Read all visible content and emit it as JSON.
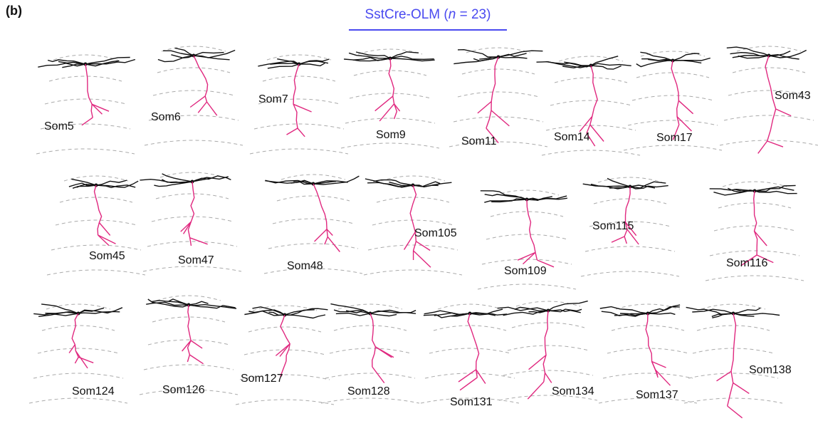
{
  "panel_label": "(b)",
  "title_parts": [
    "SstCre-OLM (",
    "n",
    " = 23)"
  ],
  "cells": [
    "Som5",
    "Som6",
    "Som7",
    "Som9",
    "Som11",
    "Som14",
    "Som17",
    "Som43",
    "Som45",
    "Som47",
    "Som48",
    "Som105",
    "Som109",
    "Som115",
    "Som116",
    "Som124",
    "Som126",
    "Som127",
    "Som128",
    "Som131",
    "Som134",
    "Som137",
    "Som138"
  ]
}
